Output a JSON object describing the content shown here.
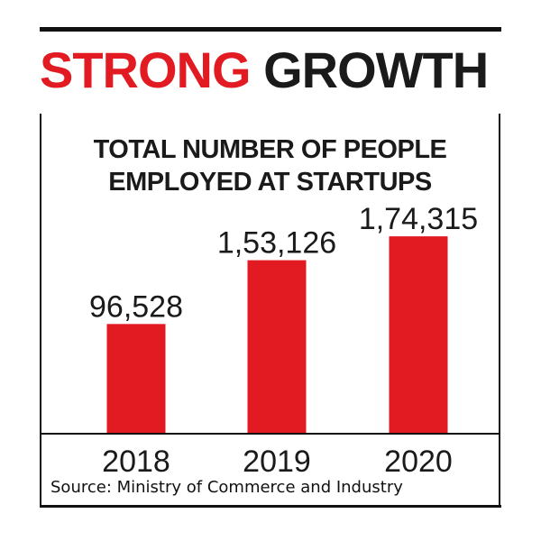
{
  "headline": {
    "part1": "STRONG",
    "part2": "GROWTH"
  },
  "colors": {
    "accent": "#e21b23",
    "text": "#1a1a1a",
    "bar": "#e21b23",
    "axis": "#111111"
  },
  "chart_data": {
    "type": "bar",
    "title_lines": [
      "TOTAL NUMBER OF PEOPLE",
      "EMPLOYED AT STARTUPS"
    ],
    "categories": [
      "2018",
      "2019",
      "2020"
    ],
    "values": [
      96528,
      153126,
      174315
    ],
    "value_labels": [
      "96,528",
      "1,53,126",
      "1,74,315"
    ],
    "xlabel": "",
    "ylabel": "",
    "ylim": [
      0,
      216000
    ],
    "grid": false,
    "legend": "none"
  },
  "source": "Source: Ministry of Commerce and Industry"
}
